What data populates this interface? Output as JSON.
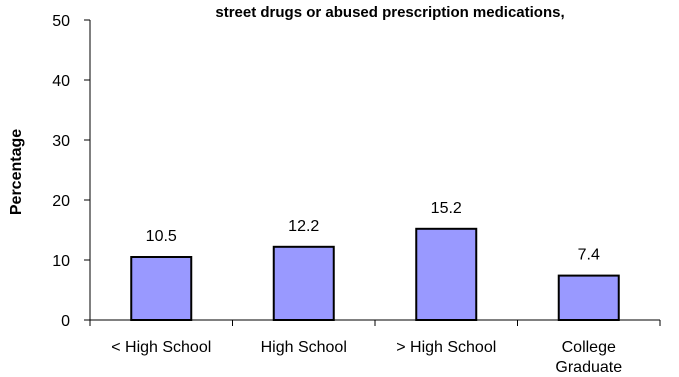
{
  "chart_data": {
    "type": "bar",
    "title": "street drugs or abused prescription medications,",
    "ylabel": "Percentage",
    "xlabel": "",
    "categories": [
      [
        "< High School"
      ],
      [
        "High School"
      ],
      [
        "> High School"
      ],
      [
        "College",
        "Graduate"
      ]
    ],
    "values": [
      10.5,
      12.2,
      15.2,
      7.4
    ],
    "data_labels": [
      "10.5",
      "12.2",
      "15.2",
      "7.4"
    ],
    "ylim": [
      0,
      50
    ],
    "yticks": [
      0,
      10,
      20,
      30,
      40,
      50
    ],
    "ytick_labels": [
      "0",
      "10",
      "20",
      "30",
      "40",
      "50"
    ],
    "grid": false,
    "legend": "none",
    "colors": {
      "bar_fill": "#9999FF",
      "bar_stroke": "#000000",
      "axis": "#000000"
    }
  }
}
